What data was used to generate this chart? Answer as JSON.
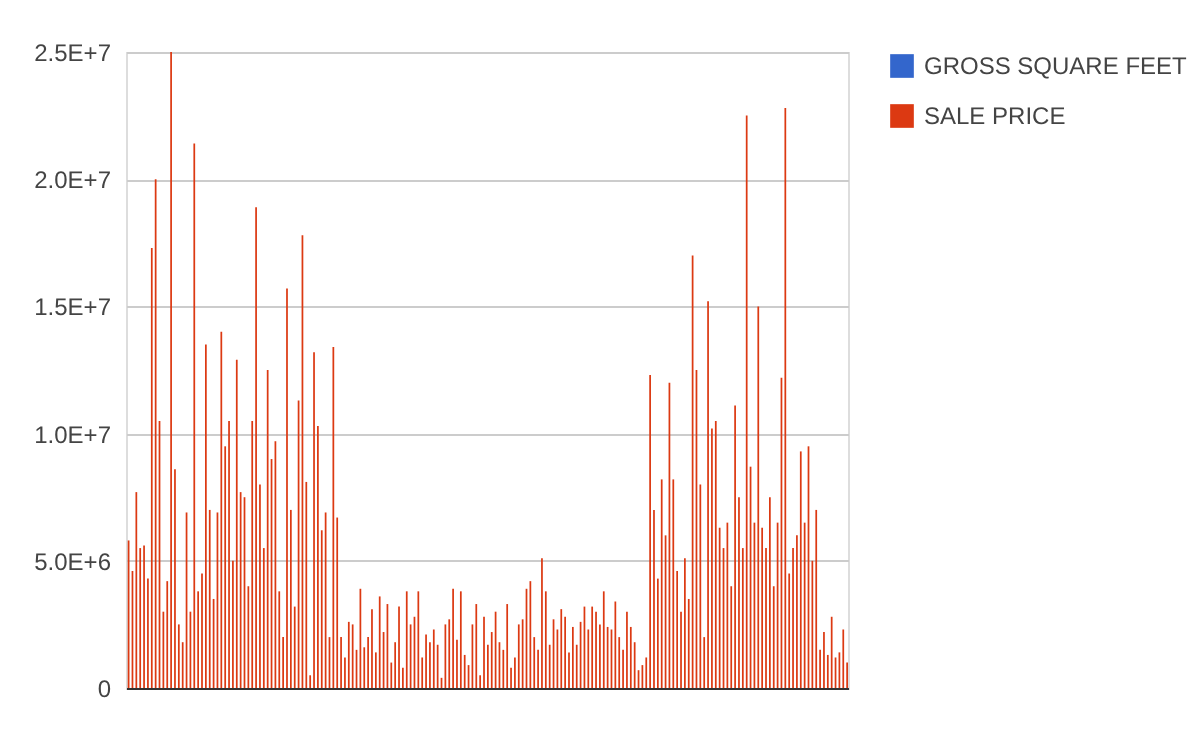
{
  "chart_data": {
    "type": "bar",
    "categories": [
      null,
      null,
      null,
      null,
      null,
      null,
      null,
      null,
      null,
      null,
      null,
      null,
      null,
      null,
      null,
      null,
      null,
      null,
      null,
      null,
      null,
      null,
      null,
      null,
      null,
      null,
      null,
      null,
      null,
      null,
      null,
      null,
      null,
      null,
      null,
      null,
      null,
      null,
      null,
      null,
      null,
      null,
      null,
      null,
      null,
      null,
      null,
      null,
      null,
      null,
      null,
      null,
      null,
      null,
      null,
      null,
      null,
      null,
      null,
      null,
      null,
      null,
      null,
      null,
      null,
      null,
      null,
      null,
      null,
      null,
      null,
      null,
      null,
      null,
      null,
      null,
      null,
      null,
      null,
      null,
      null,
      null,
      null,
      null,
      null,
      null,
      null,
      null,
      null,
      null,
      null,
      null,
      null,
      null,
      null,
      null,
      null,
      null,
      null,
      null,
      null,
      null,
      null,
      null,
      null,
      null,
      null,
      null,
      null,
      null,
      null,
      null,
      null,
      null,
      null,
      null,
      null,
      null,
      null,
      null,
      null,
      null,
      null,
      null,
      null,
      null,
      null,
      null,
      null,
      null,
      null,
      null,
      null,
      null,
      null,
      null,
      null,
      null,
      null,
      null,
      null,
      null,
      null,
      null,
      null,
      null,
      null,
      null,
      null,
      null,
      null,
      null,
      null,
      null,
      null,
      null,
      null,
      null,
      null,
      null,
      null,
      null,
      null,
      null,
      null,
      null,
      null,
      null,
      null,
      null,
      null,
      null,
      null,
      null,
      null,
      null,
      null,
      null,
      null,
      null,
      null,
      null,
      null,
      null,
      null,
      null,
      null
    ],
    "series": [
      {
        "name": "GROSS SQUARE FEET",
        "color": "#3366cc",
        "values": [
          null,
          null,
          null,
          null,
          null,
          null,
          null,
          null,
          null,
          null,
          null,
          null,
          null,
          null,
          null,
          null,
          null,
          null,
          null,
          null,
          null,
          null,
          null,
          null,
          null,
          null,
          null,
          null,
          null,
          null,
          null,
          null,
          null,
          null,
          null,
          null,
          null,
          null,
          null,
          null,
          null,
          null,
          null,
          null,
          null,
          null,
          null,
          null,
          null,
          null,
          null,
          null,
          null,
          null,
          null,
          null,
          null,
          null,
          null,
          null,
          null,
          null,
          null,
          null,
          null,
          null,
          null,
          null,
          null,
          null,
          null,
          null,
          null,
          null,
          null,
          null,
          null,
          null,
          null,
          null,
          null,
          null,
          null,
          null,
          null,
          null,
          null,
          null,
          null,
          null,
          null,
          null,
          null,
          null,
          null,
          null,
          null,
          null,
          null,
          null,
          null,
          null,
          null,
          null,
          null,
          null,
          null,
          null,
          null,
          null,
          null,
          null,
          null,
          null,
          null,
          null,
          null,
          null,
          null,
          null,
          null,
          null,
          null,
          null,
          null,
          null,
          null,
          null,
          null,
          null,
          null,
          null,
          null,
          null,
          null,
          null,
          null,
          null,
          null,
          null,
          null,
          null,
          null,
          null,
          null,
          null,
          null,
          null,
          null,
          null,
          null,
          null,
          null,
          null,
          null,
          null,
          null,
          null,
          null,
          null,
          null,
          null,
          null,
          null,
          null,
          null,
          null,
          null,
          null,
          null,
          null,
          null,
          null,
          null,
          null,
          null,
          null,
          null,
          null,
          null,
          null,
          null,
          null,
          null,
          null,
          null,
          null
        ]
      },
      {
        "name": "SALE PRICE",
        "color": "#dc3912",
        "values": [
          5800000,
          4600000,
          7700000,
          5500000,
          5600000,
          4300000,
          17300000,
          20000000,
          10500000,
          3000000,
          4200000,
          25000000,
          8600000,
          2500000,
          1800000,
          6900000,
          3000000,
          21400000,
          3800000,
          4500000,
          13500000,
          7000000,
          3500000,
          6900000,
          14000000,
          9500000,
          10500000,
          5000000,
          12900000,
          7700000,
          7500000,
          4000000,
          10500000,
          18900000,
          8000000,
          5500000,
          12500000,
          9000000,
          9700000,
          3800000,
          2000000,
          15700000,
          7000000,
          3200000,
          11300000,
          17800000,
          8100000,
          500000,
          13200000,
          10300000,
          6200000,
          6900000,
          2000000,
          13400000,
          6700000,
          2000000,
          1200000,
          2600000,
          2500000,
          1500000,
          3900000,
          1600000,
          2000000,
          3100000,
          1400000,
          3600000,
          2200000,
          3300000,
          1000000,
          1800000,
          3200000,
          800000,
          3800000,
          2500000,
          2800000,
          3800000,
          1200000,
          2100000,
          1800000,
          2300000,
          1700000,
          400000,
          2500000,
          2700000,
          3900000,
          1900000,
          3800000,
          1300000,
          900000,
          2500000,
          3300000,
          500000,
          2800000,
          1700000,
          2200000,
          3000000,
          1800000,
          1500000,
          3300000,
          800000,
          1200000,
          2500000,
          2700000,
          3900000,
          4200000,
          2000000,
          1500000,
          5100000,
          3800000,
          1700000,
          2700000,
          2300000,
          3100000,
          2800000,
          1400000,
          2400000,
          1700000,
          2600000,
          3200000,
          2300000,
          3200000,
          3000000,
          2500000,
          3800000,
          2400000,
          2300000,
          3400000,
          2000000,
          1500000,
          3000000,
          2400000,
          1800000,
          700000,
          900000,
          1200000,
          12300000,
          7000000,
          4300000,
          8200000,
          6000000,
          12000000,
          8200000,
          4600000,
          3000000,
          5100000,
          3500000,
          17000000,
          12500000,
          8000000,
          2000000,
          15200000,
          10200000,
          10500000,
          6300000,
          5500000,
          6500000,
          4000000,
          11100000,
          7500000,
          5500000,
          22500000,
          8700000,
          6500000,
          15000000,
          6300000,
          5500000,
          7500000,
          4000000,
          6500000,
          12200000,
          22800000,
          4500000,
          5500000,
          6000000,
          9300000,
          6500000,
          9500000,
          5000000,
          7000000,
          1500000,
          2200000,
          1300000,
          2800000,
          1200000,
          1400000,
          2300000,
          1000000
        ]
      }
    ],
    "ylim": [
      0,
      25000000
    ],
    "yticks": [
      0,
      {
        "value": 5000000,
        "label": "5.0E+6"
      },
      {
        "value": 10000000,
        "label": "1.0E+7"
      },
      {
        "value": 15000000,
        "label": "1.5E+7"
      },
      {
        "value": 20000000,
        "label": "2.0E+7"
      },
      {
        "value": 25000000,
        "label": "2.5E+7"
      }
    ],
    "grid": "y",
    "legend": "top right",
    "tick_labels": "y"
  }
}
